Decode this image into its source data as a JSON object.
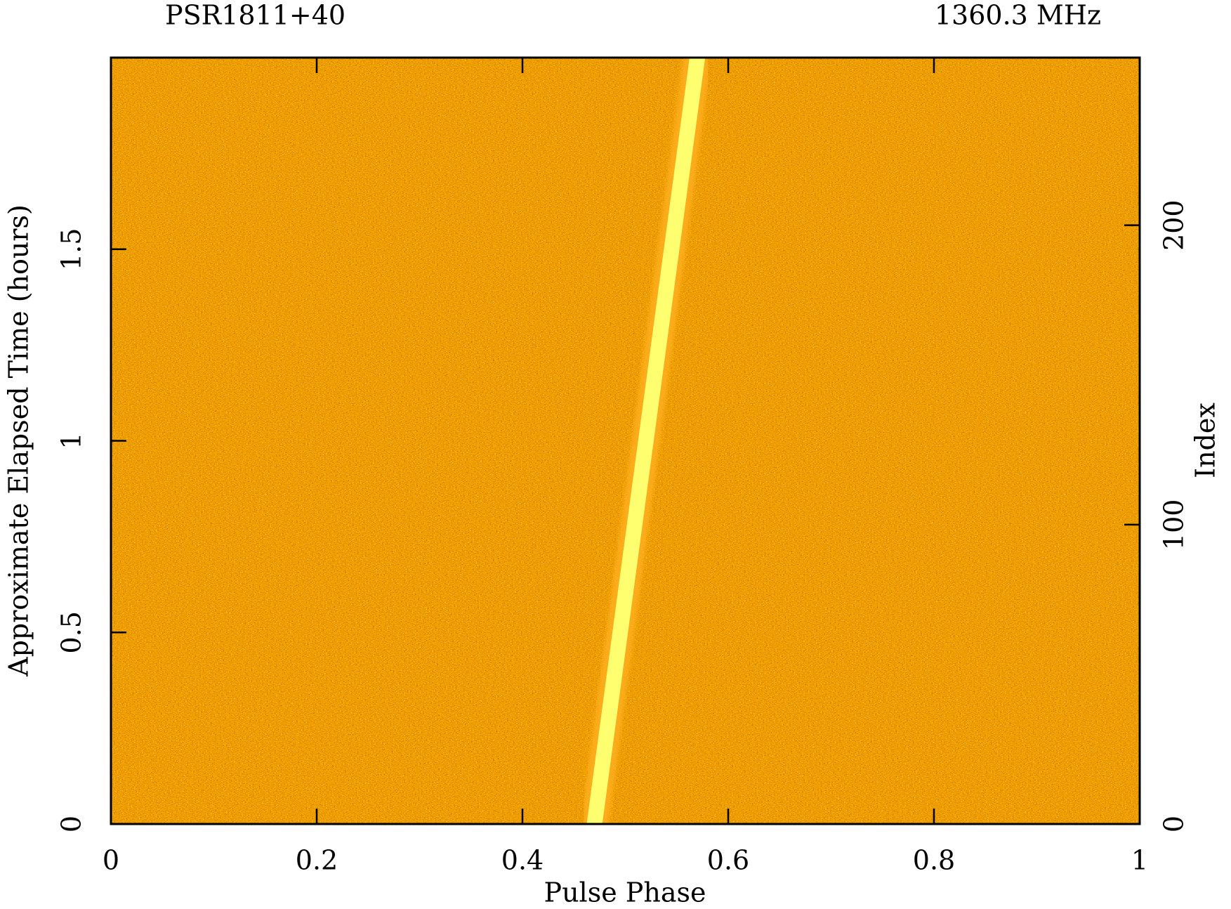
{
  "chart_data": {
    "type": "pulse-stack",
    "title": "PSR1811+40",
    "subtitle": "1360.3 MHz",
    "x_label": "Pulse Phase",
    "y_label": "Approximate Elapsed Time (hours)",
    "y2_label": "Index",
    "xlim": [
      0,
      1
    ],
    "xticks": [
      0,
      0.2,
      0.4,
      0.6,
      0.8,
      1
    ],
    "ylim": [
      0,
      2
    ],
    "yticks": [
      0,
      0.5,
      1,
      1.5
    ],
    "y2lim": [
      0,
      256
    ],
    "y2ticks": [
      0,
      100,
      200
    ],
    "series": [
      {
        "color": "#ffff70",
        "x": [
          0.47,
          0.57
        ],
        "values": [
          0,
          2
        ]
      }
    ]
  }
}
